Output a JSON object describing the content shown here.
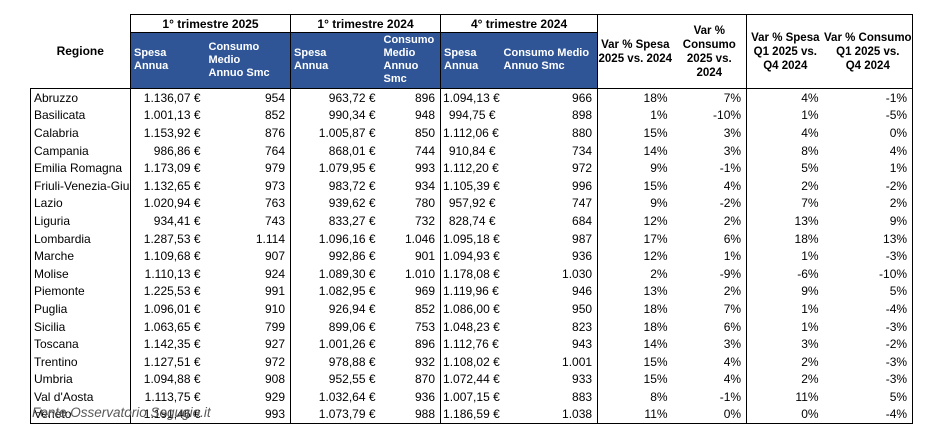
{
  "chart_data": {
    "type": "table",
    "corner_header": "Regione",
    "groups": [
      {
        "label": "1° trimestre 2025",
        "sub_headers": [
          "Spesa\nAnnua",
          "Consumo Medio\nAnnuo Smc"
        ]
      },
      {
        "label": "1° trimestre 2024",
        "sub_headers": [
          "Spesa\nAnnua",
          "Consumo Medio\nAnnuo Smc"
        ]
      },
      {
        "label": "4° trimestre 2024",
        "sub_headers": [
          "Spesa\nAnnua",
          "Consumo Medio\nAnnuo Smc"
        ]
      }
    ],
    "var_headers": [
      "Var % Spesa\n2025 vs. 2024",
      "Var % Consumo\n2025 vs. 2024",
      "Var % Spesa\nQ1 2025 vs.\nQ4 2024",
      "Var % Consumo\nQ1 2025 vs.\nQ4 2024"
    ],
    "columns": [
      "Regione",
      "Spesa Annua Q1 2025",
      "Consumo Medio Annuo Smc Q1 2025",
      "Spesa Annua Q1 2024",
      "Consumo Medio Annuo Smc Q1 2024",
      "Spesa Annua Q4 2024",
      "Consumo Medio Annuo Smc Q4 2024",
      "Var % Spesa 2025 vs. 2024",
      "Var % Consumo 2025 vs. 2024",
      "Var % Spesa Q1 2025 vs. Q4 2024",
      "Var % Consumo Q1 2025 vs. Q4 2024"
    ],
    "rows": [
      [
        "Abruzzo",
        "1.136,07 €",
        "954",
        "963,72 €",
        "896",
        "1.094,13 €",
        "966",
        "18%",
        "7%",
        "4%",
        "-1%"
      ],
      [
        "Basilicata",
        "1.001,13 €",
        "852",
        "990,34 €",
        "948",
        "994,75 €",
        "898",
        "1%",
        "-10%",
        "1%",
        "-5%"
      ],
      [
        "Calabria",
        "1.153,92 €",
        "876",
        "1.005,87 €",
        "850",
        "1.112,06 €",
        "880",
        "15%",
        "3%",
        "4%",
        "0%"
      ],
      [
        "Campania",
        "986,86 €",
        "764",
        "868,01 €",
        "744",
        "910,84 €",
        "734",
        "14%",
        "3%",
        "8%",
        "4%"
      ],
      [
        "Emilia Romagna",
        "1.173,09 €",
        "979",
        "1.079,95 €",
        "993",
        "1.112,20 €",
        "972",
        "9%",
        "-1%",
        "5%",
        "1%"
      ],
      [
        "Friuli-Venezia-Giulia",
        "1.132,65 €",
        "973",
        "983,72 €",
        "934",
        "1.105,39 €",
        "996",
        "15%",
        "4%",
        "2%",
        "-2%"
      ],
      [
        "Lazio",
        "1.020,94 €",
        "763",
        "939,62 €",
        "780",
        "957,92 €",
        "747",
        "9%",
        "-2%",
        "7%",
        "2%"
      ],
      [
        "Liguria",
        "934,41 €",
        "743",
        "833,27 €",
        "732",
        "828,74 €",
        "684",
        "12%",
        "2%",
        "13%",
        "9%"
      ],
      [
        "Lombardia",
        "1.287,53 €",
        "1.114",
        "1.096,16 €",
        "1.046",
        "1.095,18 €",
        "987",
        "17%",
        "6%",
        "18%",
        "13%"
      ],
      [
        "Marche",
        "1.109,68 €",
        "907",
        "992,86 €",
        "901",
        "1.094,93 €",
        "936",
        "12%",
        "1%",
        "1%",
        "-3%"
      ],
      [
        "Molise",
        "1.110,13 €",
        "924",
        "1.089,30 €",
        "1.010",
        "1.178,08 €",
        "1.030",
        "2%",
        "-9%",
        "-6%",
        "-10%"
      ],
      [
        "Piemonte",
        "1.225,53 €",
        "991",
        "1.082,95 €",
        "969",
        "1.119,96 €",
        "946",
        "13%",
        "2%",
        "9%",
        "5%"
      ],
      [
        "Puglia",
        "1.096,01 €",
        "910",
        "926,94 €",
        "852",
        "1.086,00 €",
        "950",
        "18%",
        "7%",
        "1%",
        "-4%"
      ],
      [
        "Sicilia",
        "1.063,65 €",
        "799",
        "899,06 €",
        "753",
        "1.048,23 €",
        "823",
        "18%",
        "6%",
        "1%",
        "-3%"
      ],
      [
        "Toscana",
        "1.142,35 €",
        "927",
        "1.001,26 €",
        "896",
        "1.112,76 €",
        "943",
        "14%",
        "3%",
        "3%",
        "-2%"
      ],
      [
        "Trentino",
        "1.127,51 €",
        "972",
        "978,88 €",
        "932",
        "1.108,02 €",
        "1.001",
        "15%",
        "4%",
        "2%",
        "-3%"
      ],
      [
        "Umbria",
        "1.094,88 €",
        "908",
        "952,55 €",
        "870",
        "1.072,44 €",
        "933",
        "15%",
        "4%",
        "2%",
        "-3%"
      ],
      [
        "Val d'Aosta",
        "1.113,75 €",
        "929",
        "1.032,64 €",
        "936",
        "1.007,15 €",
        "883",
        "8%",
        "-1%",
        "11%",
        "5%"
      ],
      [
        "Veneto",
        "1.191,46 €",
        "993",
        "1.073,79 €",
        "988",
        "1.186,59 €",
        "1.038",
        "11%",
        "0%",
        "0%",
        "-4%"
      ]
    ],
    "source_note": "Fonte Osservatorio Segugio.it"
  },
  "colors": {
    "header_blue": "#2F5597",
    "border": "#000000",
    "footer_text": "#595959"
  }
}
